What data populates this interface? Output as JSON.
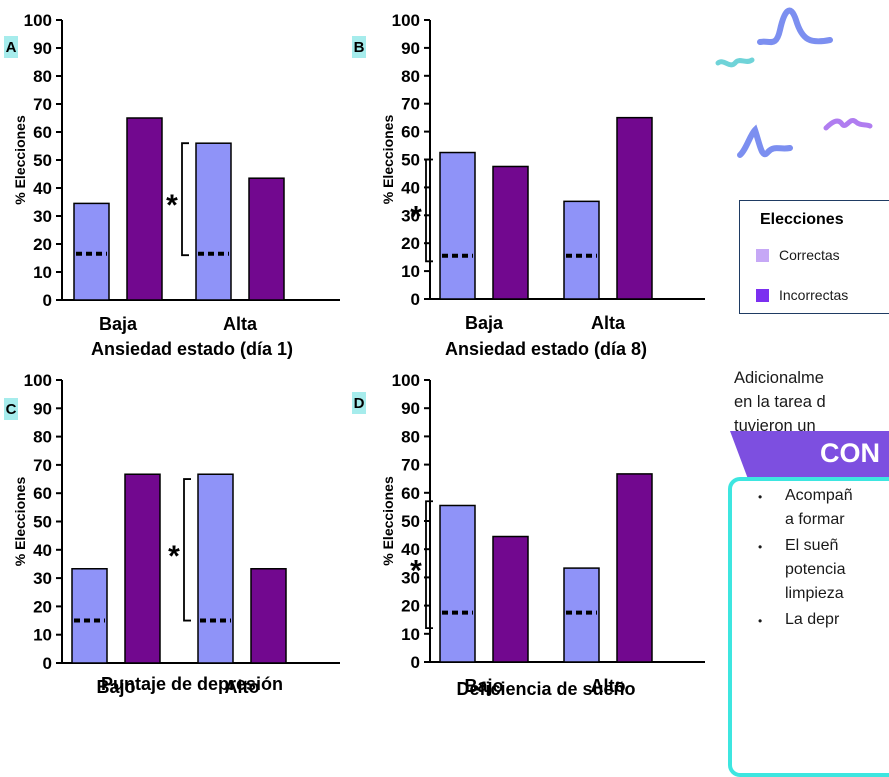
{
  "chart_data": [
    {
      "panel": "A",
      "type": "bar",
      "categories": [
        "Baja",
        "Alta"
      ],
      "series": [
        {
          "name": "Correctas",
          "values": [
            34.5,
            56
          ]
        },
        {
          "name": "Incorrectas",
          "values": [
            65,
            43.5
          ]
        }
      ],
      "chance_line": [
        16.5,
        16.5
      ],
      "significance": {
        "category_index": 1,
        "label": "*",
        "bracket": [
          16,
          56
        ]
      },
      "xlabel": "Ansiedad estado (día 1)",
      "ylabel": "% Elecciones",
      "ylim": [
        0,
        100
      ],
      "yticks": [
        0,
        10,
        20,
        30,
        40,
        50,
        60,
        70,
        80,
        90,
        100
      ]
    },
    {
      "panel": "B",
      "type": "bar",
      "categories": [
        "Baja",
        "Alta"
      ],
      "series": [
        {
          "name": "Correctas",
          "values": [
            52.5,
            35
          ]
        },
        {
          "name": "Incorrectas",
          "values": [
            47.5,
            65
          ]
        }
      ],
      "chance_line": [
        15.5,
        15.5
      ],
      "significance": {
        "category_index": 0,
        "label": "*",
        "bracket": [
          13.5,
          50
        ]
      },
      "xlabel": "Ansiedad estado (día 8)",
      "ylabel": "% Elecciones",
      "ylim": [
        0,
        100
      ],
      "yticks": [
        0,
        10,
        20,
        30,
        40,
        50,
        60,
        70,
        80,
        90,
        100
      ]
    },
    {
      "panel": "C",
      "type": "bar",
      "categories": [
        "Bajo",
        "Alto"
      ],
      "series": [
        {
          "name": "Correctas",
          "values": [
            33.3,
            66.7
          ]
        },
        {
          "name": "Incorrectas",
          "values": [
            66.7,
            33.3
          ]
        }
      ],
      "chance_line": [
        15,
        15
      ],
      "significance": {
        "category_index": 1,
        "label": "*",
        "bracket": [
          15,
          65
        ]
      },
      "xlabel": "Puntaje de depresión",
      "ylabel": "% Elecciones",
      "ylim": [
        0,
        100
      ],
      "yticks": [
        0,
        10,
        20,
        30,
        40,
        50,
        60,
        70,
        80,
        90,
        100
      ]
    },
    {
      "panel": "D",
      "type": "bar",
      "categories": [
        "Bajo",
        "Alto"
      ],
      "series": [
        {
          "name": "Correctas",
          "values": [
            55.5,
            33.3
          ]
        },
        {
          "name": "Incorrectas",
          "values": [
            44.5,
            66.7
          ]
        }
      ],
      "chance_line": [
        17.5,
        17.5
      ],
      "significance": {
        "category_index": 0,
        "label": "*",
        "bracket": [
          12,
          57
        ]
      },
      "xlabel": "Deficiencia de sueño",
      "ylabel": "% Elecciones",
      "ylim": [
        0,
        100
      ],
      "yticks": [
        0,
        10,
        20,
        30,
        40,
        50,
        60,
        70,
        80,
        90,
        100
      ]
    }
  ],
  "colors": {
    "correct_bar": "#8f93f8",
    "incorrect_bar": "#72088f",
    "legend_correct": "#c6a8f6",
    "legend_incorrect": "#7b2ff0",
    "accent_cyan": "#3de6e0",
    "accent_purple": "#7d4fe0"
  },
  "legend": {
    "title": "Elecciones",
    "items": [
      {
        "label": "Correctas"
      },
      {
        "label": "Incorrectas"
      }
    ]
  },
  "side_text": {
    "paragraph_lines": [
      "Adicionalme",
      "en la tarea d",
      "tuvieron un"
    ],
    "conclusions_heading": "CON",
    "bullets": [
      {
        "lines": [
          "Acompañ",
          "a formar"
        ]
      },
      {
        "lines": [
          "El    sueñ",
          "potencia",
          "limpieza"
        ]
      },
      {
        "lines": [
          "La    depr"
        ]
      }
    ]
  }
}
